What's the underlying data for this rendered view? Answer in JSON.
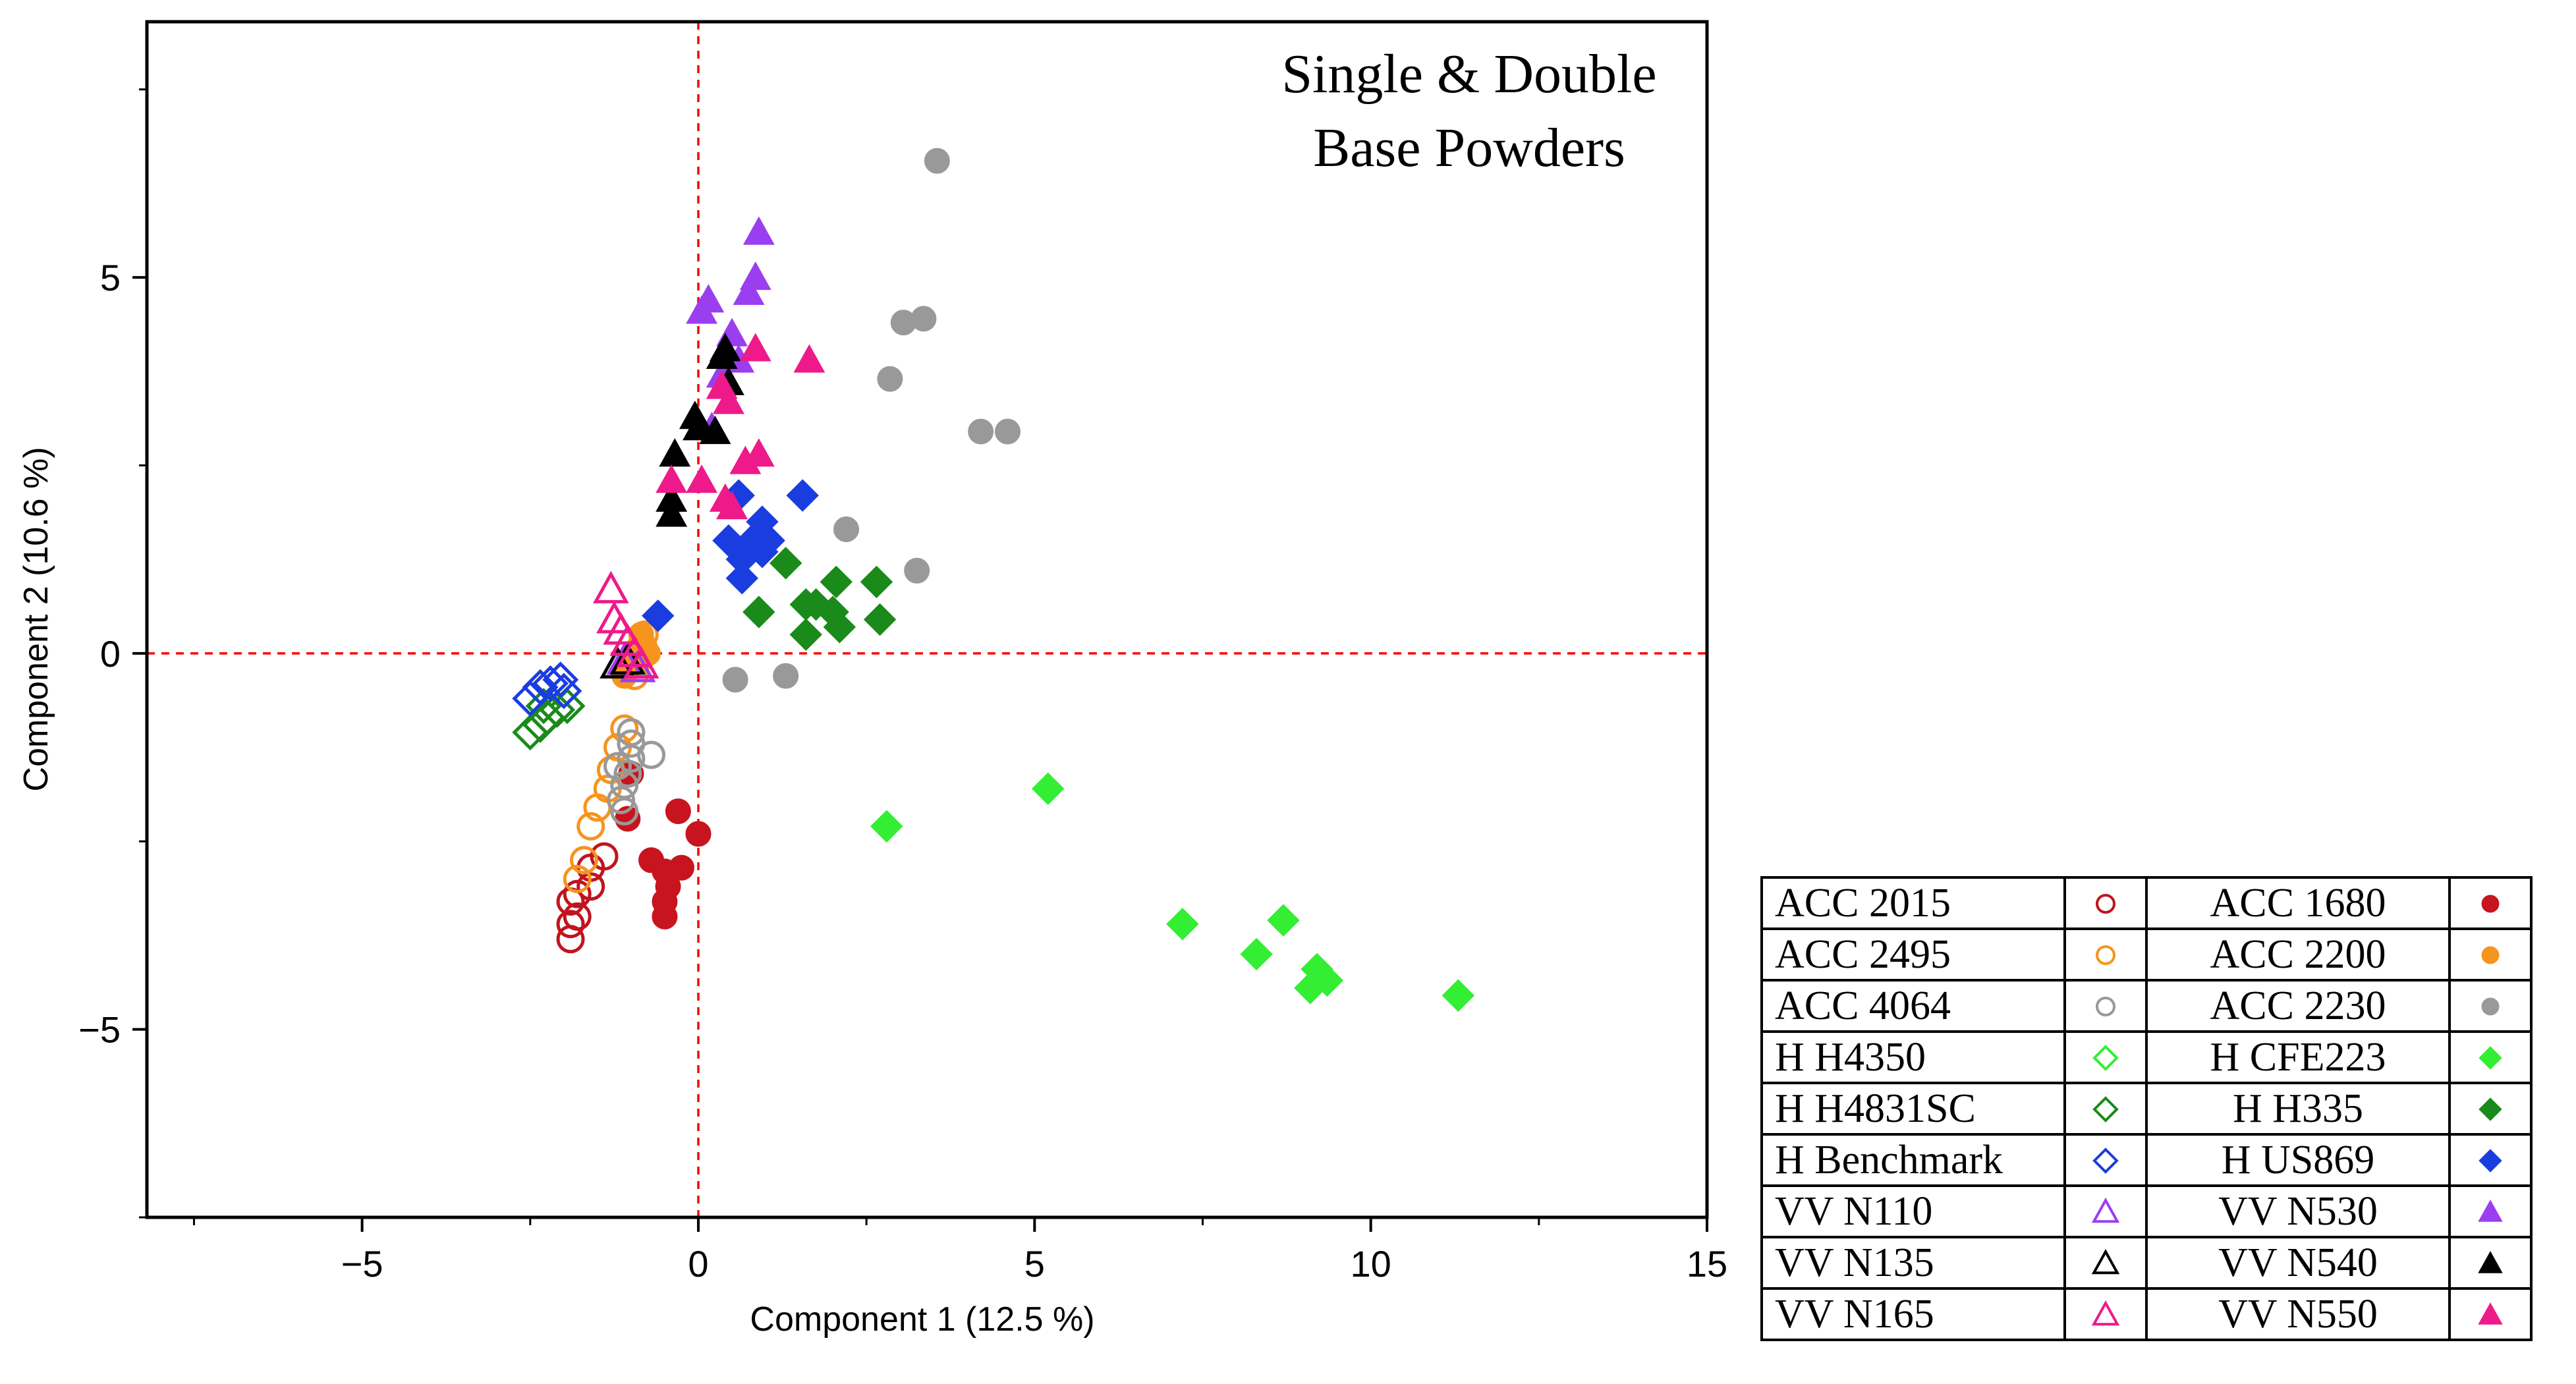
{
  "chart_data": {
    "type": "scatter",
    "title": "Single & Double Base Powders",
    "title_lines": [
      "Single & Double",
      "Base Powders"
    ],
    "xlabel": "Component 1  (12.5 %)",
    "ylabel": "Component 2  (10.6 %)",
    "xlim": [
      -8.2,
      15
    ],
    "ylim": [
      -7.5,
      8.4
    ],
    "xticks": [
      -5,
      0,
      5,
      10,
      15
    ],
    "xtick_labels": [
      "−5",
      "0",
      "5",
      "10",
      "15"
    ],
    "yticks": [
      -5,
      0,
      5
    ],
    "ytick_labels": [
      "−5",
      "0",
      "5"
    ],
    "reference_lines": {
      "x": 0,
      "y": 0,
      "color": "#ff0000",
      "style": "dashed"
    },
    "legend_placement": "bottom-right outside",
    "series": [
      {
        "name": "ACC 2015",
        "marker": "circle",
        "filled": false,
        "color": "#c0141e",
        "points": [
          [
            -1.9,
            -3.8
          ],
          [
            -1.9,
            -3.6
          ],
          [
            -1.8,
            -3.5
          ],
          [
            -1.9,
            -3.3
          ],
          [
            -1.8,
            -3.2
          ],
          [
            -1.6,
            -3.1
          ],
          [
            -1.6,
            -2.85
          ],
          [
            -1.4,
            -2.7
          ]
        ]
      },
      {
        "name": "ACC 1680",
        "marker": "circle",
        "filled": true,
        "color": "#c8141e",
        "points": [
          [
            -1.0,
            -1.6
          ],
          [
            -1.05,
            -2.2
          ],
          [
            -0.3,
            -2.1
          ],
          [
            0.0,
            -2.4
          ],
          [
            -0.7,
            -2.75
          ],
          [
            -0.5,
            -2.9
          ],
          [
            -0.25,
            -2.85
          ],
          [
            -0.45,
            -3.1
          ],
          [
            -0.5,
            -3.3
          ],
          [
            -0.5,
            -3.5
          ]
        ]
      },
      {
        "name": "ACC 2495",
        "marker": "circle",
        "filled": false,
        "color": "#f7941d",
        "points": [
          [
            -1.6,
            -2.3
          ],
          [
            -1.5,
            -2.05
          ],
          [
            -1.35,
            -1.8
          ],
          [
            -1.3,
            -1.55
          ],
          [
            -1.2,
            -1.25
          ],
          [
            -1.1,
            -1.0
          ],
          [
            -1.8,
            -3.0
          ],
          [
            -1.7,
            -2.75
          ],
          [
            -0.95,
            -0.3
          ],
          [
            -0.9,
            -0.1
          ],
          [
            -0.85,
            0.1
          ],
          [
            -0.8,
            0.25
          ]
        ]
      },
      {
        "name": "ACC 2200",
        "marker": "circle",
        "filled": true,
        "color": "#f7941d",
        "points": [
          [
            -0.8,
            0.1
          ],
          [
            -0.9,
            -0.1
          ],
          [
            -1.1,
            -0.3
          ],
          [
            -0.85,
            0.25
          ],
          [
            -0.75,
            0.0
          ]
        ]
      },
      {
        "name": "ACC 4064",
        "marker": "circle",
        "filled": false,
        "color": "#999999",
        "points": [
          [
            -1.0,
            -1.2
          ],
          [
            -1.0,
            -1.4
          ],
          [
            -1.05,
            -1.6
          ],
          [
            -1.1,
            -1.75
          ],
          [
            -1.15,
            -1.95
          ],
          [
            -1.2,
            -1.5
          ],
          [
            -0.7,
            -1.35
          ],
          [
            -1.0,
            -1.05
          ],
          [
            -1.1,
            -2.1
          ]
        ]
      },
      {
        "name": "ACC 2230",
        "marker": "circle",
        "filled": true,
        "color": "#999999",
        "points": [
          [
            3.55,
            6.55
          ],
          [
            3.05,
            4.4
          ],
          [
            3.35,
            4.45
          ],
          [
            2.85,
            3.65
          ],
          [
            4.2,
            2.95
          ],
          [
            4.6,
            2.95
          ],
          [
            2.2,
            1.65
          ],
          [
            3.25,
            1.1
          ],
          [
            0.55,
            -0.35
          ],
          [
            1.3,
            -0.3
          ]
        ]
      },
      {
        "name": "H H4350",
        "marker": "diamond",
        "filled": false,
        "color": "#33ee33",
        "points": []
      },
      {
        "name": "H CFE223",
        "marker": "diamond",
        "filled": true,
        "color": "#33ee33",
        "points": [
          [
            5.2,
            -1.8
          ],
          [
            2.8,
            -2.3
          ],
          [
            7.2,
            -3.6
          ],
          [
            8.7,
            -3.55
          ],
          [
            8.3,
            -4.0
          ],
          [
            9.2,
            -4.2
          ],
          [
            9.35,
            -4.35
          ],
          [
            9.1,
            -4.45
          ],
          [
            11.3,
            -4.55
          ]
        ]
      },
      {
        "name": "H H4831SC",
        "marker": "diamond",
        "filled": false,
        "color": "#1a8a1a",
        "points": [
          [
            -2.5,
            -1.05
          ],
          [
            -2.35,
            -0.95
          ],
          [
            -2.25,
            -0.85
          ],
          [
            -2.1,
            -0.75
          ],
          [
            -1.95,
            -0.7
          ],
          [
            -2.3,
            -0.7
          ]
        ]
      },
      {
        "name": "H H335",
        "marker": "diamond",
        "filled": true,
        "color": "#1a8a1a",
        "points": [
          [
            1.3,
            1.2
          ],
          [
            0.9,
            0.55
          ],
          [
            1.6,
            0.65
          ],
          [
            1.75,
            0.65
          ],
          [
            2.0,
            0.55
          ],
          [
            2.05,
            0.95
          ],
          [
            2.65,
            0.95
          ],
          [
            2.7,
            0.45
          ],
          [
            2.1,
            0.35
          ],
          [
            1.6,
            0.25
          ]
        ]
      },
      {
        "name": "H Benchmark",
        "marker": "diamond",
        "filled": false,
        "color": "#1a3de0",
        "points": [
          [
            -2.5,
            -0.6
          ],
          [
            -2.35,
            -0.45
          ],
          [
            -2.2,
            -0.4
          ],
          [
            -2.05,
            -0.35
          ],
          [
            -2.0,
            -0.5
          ]
        ]
      },
      {
        "name": "H US869",
        "marker": "diamond",
        "filled": true,
        "color": "#1a3de0",
        "points": [
          [
            -0.6,
            0.5
          ],
          [
            0.6,
            2.1
          ],
          [
            1.55,
            2.1
          ],
          [
            0.45,
            1.5
          ],
          [
            0.65,
            1.25
          ],
          [
            0.95,
            1.75
          ],
          [
            0.8,
            1.5
          ],
          [
            1.05,
            1.5
          ],
          [
            0.95,
            1.35
          ],
          [
            0.65,
            1.0
          ]
        ]
      },
      {
        "name": "VV N110",
        "marker": "triangle",
        "filled": false,
        "color": "#9b3ef0",
        "points": [
          [
            -0.9,
            -0.2
          ],
          [
            -1.1,
            -0.1
          ]
        ]
      },
      {
        "name": "VV N530",
        "marker": "triangle",
        "filled": true,
        "color": "#9b3ef0",
        "points": [
          [
            0.9,
            5.6
          ],
          [
            0.85,
            5.0
          ],
          [
            0.75,
            4.8
          ],
          [
            0.15,
            4.7
          ],
          [
            0.05,
            4.55
          ],
          [
            0.5,
            4.25
          ],
          [
            0.6,
            3.9
          ],
          [
            0.35,
            3.7
          ],
          [
            0.2,
            3.0
          ]
        ]
      },
      {
        "name": "VV N135",
        "marker": "triangle",
        "filled": false,
        "color": "#000000",
        "points": [
          [
            -1.2,
            -0.15
          ],
          [
            -1.05,
            -0.1
          ]
        ]
      },
      {
        "name": "VV N540",
        "marker": "triangle",
        "filled": true,
        "color": "#000000",
        "points": [
          [
            0.4,
            4.05
          ],
          [
            0.35,
            3.95
          ],
          [
            -0.05,
            3.15
          ],
          [
            0.0,
            3.0
          ],
          [
            -0.35,
            2.65
          ],
          [
            -0.4,
            2.05
          ],
          [
            -0.4,
            1.85
          ],
          [
            0.25,
            2.95
          ],
          [
            0.45,
            3.6
          ]
        ]
      },
      {
        "name": "VV N165",
        "marker": "triangle",
        "filled": false,
        "color": "#ee1a8a",
        "points": [
          [
            -1.3,
            0.85
          ],
          [
            -1.25,
            0.45
          ],
          [
            -1.15,
            0.3
          ],
          [
            -1.05,
            0.15
          ],
          [
            -0.95,
            0.0
          ],
          [
            -0.85,
            -0.15
          ]
        ]
      },
      {
        "name": "VV N550",
        "marker": "triangle",
        "filled": true,
        "color": "#ee1a8a",
        "points": [
          [
            1.65,
            3.9
          ],
          [
            0.85,
            4.05
          ],
          [
            0.45,
            3.35
          ],
          [
            0.35,
            3.55
          ],
          [
            0.9,
            2.65
          ],
          [
            0.7,
            2.55
          ],
          [
            0.05,
            2.3
          ],
          [
            -0.4,
            2.3
          ],
          [
            0.4,
            2.05
          ],
          [
            0.5,
            1.95
          ]
        ]
      }
    ]
  },
  "legend": {
    "rows": [
      [
        {
          "name": "ACC 2015",
          "marker": "circle",
          "filled": false,
          "color": "#c0141e"
        },
        {
          "name": "ACC 1680",
          "marker": "circle",
          "filled": true,
          "color": "#c8141e"
        }
      ],
      [
        {
          "name": "ACC 2495",
          "marker": "circle",
          "filled": false,
          "color": "#f7941d"
        },
        {
          "name": "ACC 2200",
          "marker": "circle",
          "filled": true,
          "color": "#f7941d"
        }
      ],
      [
        {
          "name": "ACC 4064",
          "marker": "circle",
          "filled": false,
          "color": "#999999"
        },
        {
          "name": "ACC 2230",
          "marker": "circle",
          "filled": true,
          "color": "#999999"
        }
      ],
      [
        {
          "name": "H H4350",
          "marker": "diamond",
          "filled": false,
          "color": "#33ee33"
        },
        {
          "name": "H CFE223",
          "marker": "diamond",
          "filled": true,
          "color": "#33ee33"
        }
      ],
      [
        {
          "name": "H H4831SC",
          "marker": "diamond",
          "filled": false,
          "color": "#1a8a1a"
        },
        {
          "name": "H H335",
          "marker": "diamond",
          "filled": true,
          "color": "#1a8a1a"
        }
      ],
      [
        {
          "name": "H Benchmark",
          "marker": "diamond",
          "filled": false,
          "color": "#1a3de0"
        },
        {
          "name": "H US869",
          "marker": "diamond",
          "filled": true,
          "color": "#1a3de0"
        }
      ],
      [
        {
          "name": "VV N110",
          "marker": "triangle",
          "filled": false,
          "color": "#9b3ef0"
        },
        {
          "name": "VV N530",
          "marker": "triangle",
          "filled": true,
          "color": "#9b3ef0"
        }
      ],
      [
        {
          "name": "VV N135",
          "marker": "triangle",
          "filled": false,
          "color": "#000000"
        },
        {
          "name": "VV N540",
          "marker": "triangle",
          "filled": true,
          "color": "#000000"
        }
      ],
      [
        {
          "name": "VV N165",
          "marker": "triangle",
          "filled": false,
          "color": "#ee1a8a"
        },
        {
          "name": "VV N550",
          "marker": "triangle",
          "filled": true,
          "color": "#ee1a8a"
        }
      ]
    ]
  }
}
